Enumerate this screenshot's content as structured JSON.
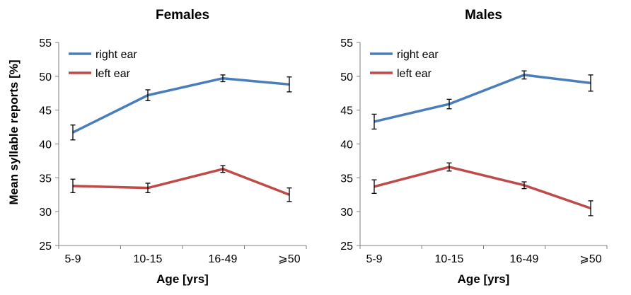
{
  "shared": {
    "ylabel": "Mean syllable reports [%]"
  },
  "chart_data": [
    {
      "type": "line",
      "title": "Females",
      "categories": [
        "5-9",
        "10-15",
        "16-49",
        "⩾50"
      ],
      "xlabel": "Age [yrs]",
      "ylabel": "Mean syllable reports [%]",
      "ylim": [
        25,
        55
      ],
      "yticks": [
        "25",
        "30",
        "35",
        "40",
        "45",
        "50",
        "55"
      ],
      "legend_position": "top-left",
      "series": [
        {
          "name": "right ear",
          "color": "#4a7ebb",
          "values": [
            41.7,
            47.2,
            49.7,
            48.8
          ],
          "errors": [
            1.1,
            0.8,
            0.5,
            1.1
          ]
        },
        {
          "name": "left ear",
          "color": "#be4b48",
          "values": [
            33.8,
            33.5,
            36.3,
            32.5
          ],
          "errors": [
            1.0,
            0.7,
            0.5,
            1.0
          ]
        }
      ]
    },
    {
      "type": "line",
      "title": "Males",
      "categories": [
        "5-9",
        "10-15",
        "16-49",
        "⩾50"
      ],
      "xlabel": "Age [yrs]",
      "ylabel": "",
      "ylim": [
        25,
        55
      ],
      "yticks": [
        "25",
        "30",
        "35",
        "40",
        "45",
        "50",
        "55"
      ],
      "legend_position": "top-left",
      "series": [
        {
          "name": "right ear",
          "color": "#4a7ebb",
          "values": [
            43.3,
            45.9,
            50.2,
            49.0
          ],
          "errors": [
            1.1,
            0.7,
            0.6,
            1.2
          ]
        },
        {
          "name": "left ear",
          "color": "#be4b48",
          "values": [
            33.7,
            36.6,
            33.9,
            30.5
          ],
          "errors": [
            1.0,
            0.6,
            0.5,
            1.1
          ]
        }
      ]
    }
  ]
}
